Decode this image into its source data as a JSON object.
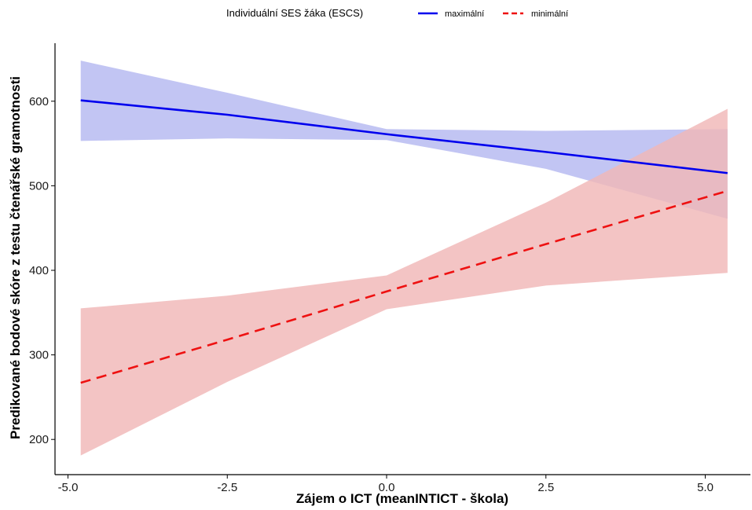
{
  "chart_data": {
    "type": "line",
    "xlabel": "Zájem o ICT (meanINTICT - škola)",
    "ylabel": "Predikované bodové skóre z testu čtenářské gramotnosti",
    "xlim": [
      -5.5,
      5.8
    ],
    "ylim": [
      150,
      700
    ],
    "x_ticks": [
      -5.0,
      -2.5,
      0.0,
      2.5,
      5.0
    ],
    "x_tick_labels": [
      "-5.0",
      "-2.5",
      "0.0",
      "2.5",
      "5.0"
    ],
    "y_ticks": [
      200,
      300,
      400,
      500,
      600
    ],
    "y_tick_labels": [
      "200",
      "300",
      "400",
      "500",
      "600"
    ],
    "grid": false,
    "legend": {
      "title": "Individuální SES žáka  (ESCS)",
      "position": "top",
      "entries": [
        "maximální",
        "minimální"
      ]
    },
    "series": [
      {
        "name": "maximální",
        "color": "#0000ee",
        "band_color": "#b4b8f0",
        "line_style": "solid",
        "x": [
          -4.8,
          -2.5,
          0.0,
          2.5,
          5.35
        ],
        "fit": [
          601,
          584,
          561,
          540,
          515
        ],
        "lower": [
          553,
          556,
          554,
          520,
          461
        ],
        "upper": [
          648,
          610,
          567,
          565,
          567
        ]
      },
      {
        "name": "minimální",
        "color": "#ee1111",
        "band_color": "#f0b7b7",
        "line_style": "dashed",
        "x": [
          -4.8,
          -2.5,
          0.0,
          2.5,
          5.35
        ],
        "fit": [
          267,
          318,
          375,
          431,
          494
        ],
        "lower": [
          181,
          268,
          354,
          382,
          397
        ],
        "upper": [
          355,
          370,
          394,
          480,
          591
        ]
      }
    ]
  }
}
